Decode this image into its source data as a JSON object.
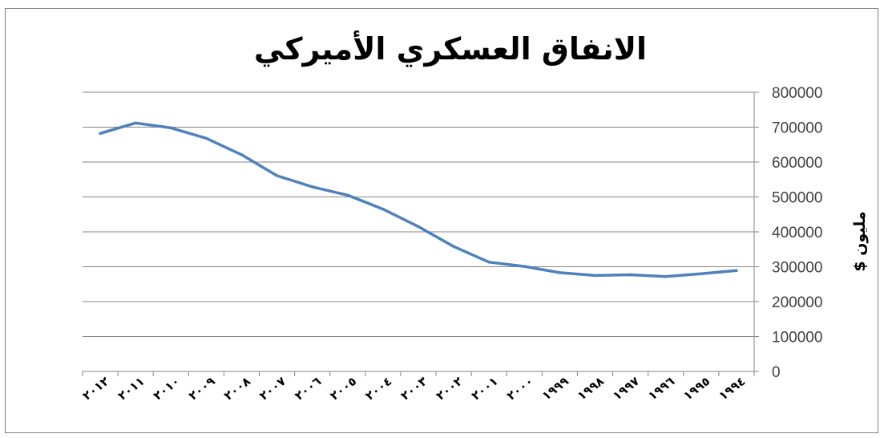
{
  "chart_data": {
    "type": "line",
    "title": "الانفاق العسكري الأميركي",
    "xlabel": "",
    "ylabel": "مليون $",
    "x_order": "right-to-left",
    "y_axis_side": "right",
    "ylim": [
      0,
      800000
    ],
    "yticks": [
      "0",
      "100000",
      "200000",
      "300000",
      "400000",
      "500000",
      "600000",
      "700000",
      "800000"
    ],
    "categories": [
      "٢٠١٢",
      "٢٠١١",
      "٢٠١٠",
      "٢٠٠٩",
      "٢٠٠٨",
      "٢٠٠٧",
      "٢٠٠٦",
      "٢٠٠٥",
      "٢٠٠٤",
      "٢٠٠٣",
      "٢٠٠٢",
      "٢٠٠١",
      "٢٠٠٠",
      "١٩٩٩",
      "١٩٩٨",
      "١٩٩٧",
      "١٩٩٦",
      "١٩٩٥",
      "١٩٩٤"
    ],
    "series": [
      {
        "values": [
          682000,
          712000,
          698000,
          668000,
          621000,
          561000,
          529000,
          505000,
          465000,
          415000,
          358000,
          313000,
          301000,
          283000,
          275000,
          277000,
          272000,
          280000,
          289000
        ],
        "color": "#4f81bd"
      }
    ],
    "grid": true,
    "legend": "none"
  }
}
